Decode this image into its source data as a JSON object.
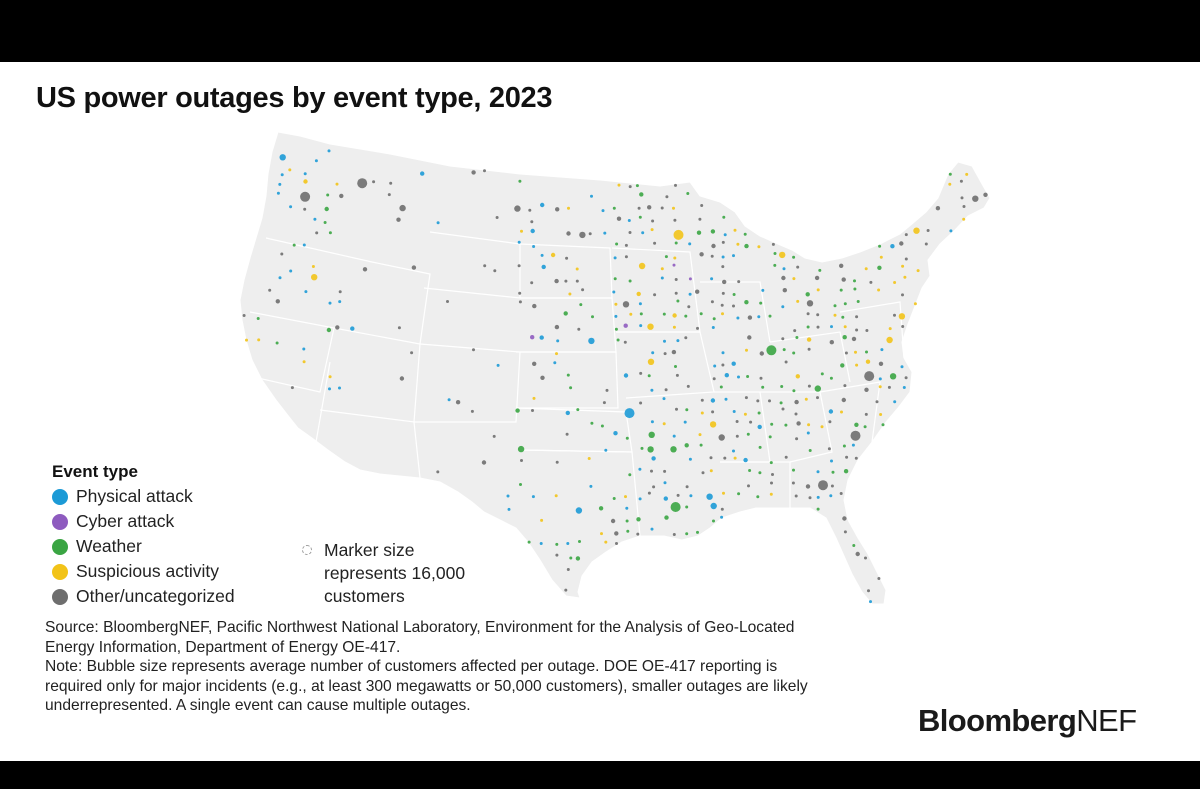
{
  "title": "US power outages by event type, 2023",
  "legend": {
    "title": "Event type",
    "items": [
      {
        "label": "Physical attack",
        "color": "#1c9ad6"
      },
      {
        "label": "Cyber attack",
        "color": "#8e5bbf"
      },
      {
        "label": "Weather",
        "color": "#3aa543"
      },
      {
        "label": "Suspicious activity",
        "color": "#f2c318"
      },
      {
        "label": "Other/uncategorized",
        "color": "#6e6e6e"
      }
    ]
  },
  "size_note": {
    "line1": "Marker size",
    "line2": "represents 16,000",
    "line3": "customers"
  },
  "footnote": {
    "source": "Source: BloombergNEF, Pacific Northwest National Laboratory, Environment for the Analysis of Geo-Located Energy Information, Department of Energy OE-417.",
    "note": "Note: Bubble size represents average number of customers affected per outage. DOE OE-417 reporting is required only for major incidents (e.g., at least 300 megawatts or 50,000 customers), smaller outages are likely underrepresented. A single event can cause multiple outages."
  },
  "brand": {
    "part1": "Bloomberg",
    "part2": "NEF"
  }
}
